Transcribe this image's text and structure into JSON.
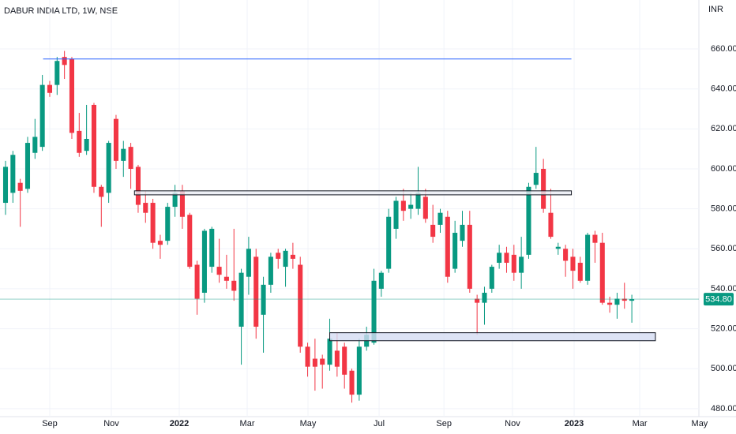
{
  "chart_data": {
    "type": "candlestick",
    "title": "DABUR INDIA LTD, 1W, NSE",
    "y_axis_unit": "INR",
    "up_color": "#089981",
    "down_color": "#f23645",
    "grid": true,
    "open": [
      583,
      588,
      593,
      590,
      608,
      611,
      642,
      642,
      656,
      655,
      619,
      609,
      632,
      591,
      588,
      625,
      604,
      611,
      601,
      583,
      583,
      564,
      564,
      581,
      589,
      577,
      552,
      538,
      551,
      551,
      546,
      544,
      521,
      546,
      556,
      527,
      542,
      558,
      551,
      557,
      552,
      511,
      505,
      505,
      502,
      509,
      511,
      499,
      487,
      511,
      513,
      540,
      550,
      570,
      584,
      580,
      580,
      586,
      572,
      572,
      576,
      550,
      564,
      572,
      535,
      533,
      540,
      553,
      558,
      557,
      548,
      557,
      592,
      600,
      578,
      560,
      560,
      556,
      553,
      544,
      567,
      563,
      533,
      532,
      535,
      534
    ],
    "high": [
      604,
      609,
      595,
      616,
      625,
      647,
      644,
      656,
      659,
      656,
      628,
      632,
      633,
      592,
      614,
      627,
      614,
      613,
      602,
      589,
      585,
      567,
      583,
      592,
      592,
      578,
      554,
      570,
      571,
      565,
      557,
      570,
      550,
      566,
      560,
      546,
      558,
      560,
      560,
      563,
      556,
      513,
      515,
      507,
      525,
      518,
      513,
      500,
      515,
      521,
      550,
      549,
      580,
      586,
      590,
      588,
      601,
      590,
      582,
      580,
      579,
      574,
      579,
      579,
      537,
      541,
      552,
      562,
      561,
      562,
      566,
      593,
      611,
      605,
      590,
      563,
      562,
      560,
      556,
      568,
      569,
      568,
      536,
      538,
      543,
      537
    ],
    "low": [
      577,
      583,
      571,
      588,
      605,
      609,
      636,
      637,
      645,
      615,
      606,
      607,
      588,
      571,
      583,
      600,
      596,
      590,
      578,
      573,
      560,
      555,
      562,
      576,
      570,
      550,
      527,
      533,
      548,
      543,
      540,
      534,
      502,
      537,
      515,
      508,
      538,
      550,
      541,
      550,
      508,
      496,
      489,
      490,
      499,
      496,
      490,
      483,
      484,
      509,
      512,
      536,
      548,
      565,
      574,
      575,
      577,
      573,
      563,
      568,
      543,
      548,
      561,
      538,
      517,
      522,
      538,
      550,
      548,
      544,
      540,
      555,
      590,
      578,
      565,
      557,
      546,
      540,
      543,
      542,
      553,
      532,
      528,
      525,
      530,
      523
    ],
    "close": [
      601,
      607,
      589,
      613,
      616,
      642,
      638,
      654,
      652,
      618,
      608,
      615,
      591,
      586,
      613,
      604,
      610,
      600,
      582,
      578,
      563,
      562,
      581,
      588,
      576,
      551,
      535,
      569,
      570,
      547,
      544,
      539,
      548,
      560,
      521,
      542,
      556,
      555,
      559,
      555,
      511,
      501,
      501,
      502,
      515,
      501,
      497,
      487,
      511,
      517,
      544,
      548,
      576,
      584,
      579,
      582,
      588,
      575,
      566,
      578,
      546,
      568,
      572,
      540,
      533,
      538,
      551,
      558,
      553,
      548,
      556,
      591,
      598,
      580,
      566,
      561,
      554,
      549,
      544,
      567,
      563,
      533,
      532,
      535,
      534,
      534.8
    ],
    "xlim": [
      -0.75,
      94.1
    ],
    "xticks": [
      {
        "value": 6.0,
        "label": "Sep"
      },
      {
        "value": 14.36,
        "label": "Nov"
      },
      {
        "value": 23.58,
        "label": "2022"
      },
      {
        "value": 32.8,
        "label": "Mar"
      },
      {
        "value": 41.05,
        "label": "May"
      },
      {
        "value": 50.7,
        "label": "Jul"
      },
      {
        "value": 59.5,
        "label": "Sep"
      },
      {
        "value": 68.8,
        "label": "Nov"
      },
      {
        "value": 77.17,
        "label": "2023"
      },
      {
        "value": 86.07,
        "label": "Mar"
      },
      {
        "value": 94.2,
        "label": "May"
      }
    ],
    "ylim": [
      476,
      684.5
    ],
    "yticks": [
      {
        "value": 480,
        "label": "480.00"
      },
      {
        "value": 500,
        "label": "500.00"
      },
      {
        "value": 520,
        "label": "520.00"
      },
      {
        "value": 540,
        "label": "540.00"
      },
      {
        "value": 560,
        "label": "560.00"
      },
      {
        "value": 580,
        "label": "580.00"
      },
      {
        "value": 600,
        "label": "600.00"
      },
      {
        "value": 620,
        "label": "620.00"
      },
      {
        "value": 640,
        "label": "640.00"
      },
      {
        "value": 660,
        "label": "660.00"
      }
    ],
    "last_price": 534.8,
    "last_price_label": "534.80",
    "drawings": [
      {
        "kind": "hline",
        "price": 655,
        "start": 5.1,
        "end": 76.8,
        "color": "#2962ff"
      },
      {
        "kind": "box",
        "top": 589,
        "bottom": 587,
        "start": 17.5,
        "end": 76.8,
        "color": "#131722",
        "fill": "#e8ebf2"
      },
      {
        "kind": "box",
        "top": 518,
        "bottom": 514,
        "start": 44,
        "end": 88.2,
        "color": "#131722",
        "fill": "#d4dcf2"
      }
    ]
  }
}
